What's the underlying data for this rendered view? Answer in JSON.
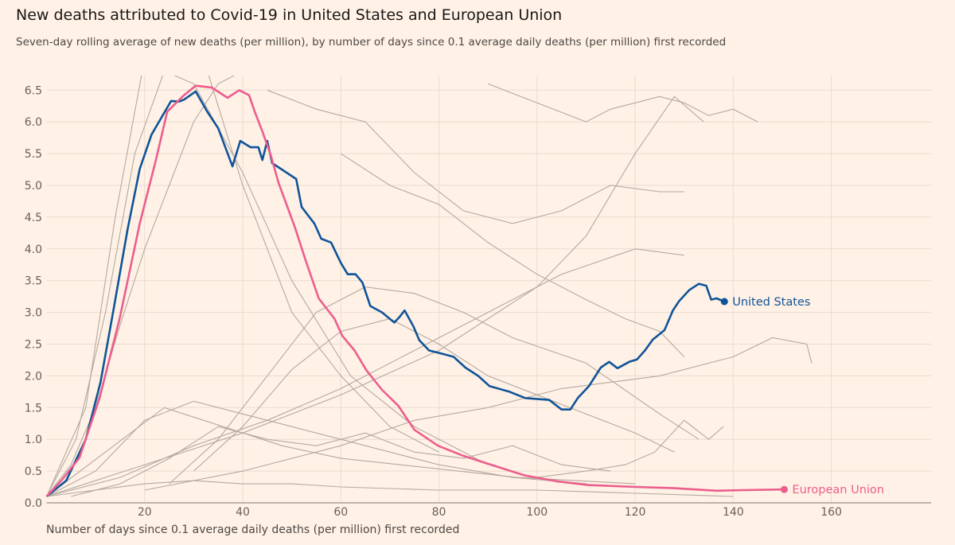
{
  "chart_data": {
    "type": "line",
    "title": "New deaths attributed to Covid-19 in United States and European Union",
    "subtitle": "Seven-day rolling average of new deaths (per million), by number of days since 0.1 average daily deaths (per million) first recorded",
    "xlabel": "Number of days since 0.1 average daily deaths (per million) first recorded",
    "ylabel": "",
    "xlim": [
      0,
      180
    ],
    "ylim": [
      0,
      6.5
    ],
    "x_ticks": [
      20,
      40,
      60,
      80,
      100,
      120,
      140,
      160
    ],
    "y_ticks": [
      "0.0",
      "0.5",
      "1.0",
      "1.5",
      "2.0",
      "2.5",
      "3.0",
      "3.5",
      "4.0",
      "4.5",
      "5.0",
      "5.5",
      "6.0",
      "6.5"
    ],
    "grid": true,
    "colors": {
      "background": "#fff1e5",
      "united_states": "#0f5499",
      "european_union": "#eb5e8d",
      "other": "#b3a9a1",
      "grid": "#e9dccf"
    },
    "series": [
      {
        "name": "United States",
        "highlight": true,
        "x": [
          0,
          4,
          8,
          11,
          13.7,
          16.5,
          19,
          21.4,
          25.4,
          27,
          28,
          30.4,
          32.7,
          35,
          37.9,
          39.5,
          41.6,
          43.2,
          44,
          45,
          46,
          48,
          50.9,
          52,
          54.6,
          56,
          58,
          60,
          61.4,
          63,
          64.4,
          66,
          68.4,
          70.9,
          72,
          73,
          74.8,
          76,
          78,
          80.6,
          83,
          85.4,
          88,
          90.3,
          94.4,
          97.6,
          102.5,
          105,
          106.8,
          108.3,
          110.6,
          113,
          114.7,
          116.4,
          118.8,
          120.4,
          122,
          123.6,
          126,
          127.7,
          129,
          131,
          133,
          134.5,
          135.5,
          136.6,
          138.2
        ],
        "y": [
          0.1,
          0.35,
          1.0,
          1.9,
          3.06,
          4.3,
          5.26,
          5.8,
          6.33,
          6.32,
          6.35,
          6.48,
          6.17,
          5.9,
          5.3,
          5.7,
          5.6,
          5.6,
          5.4,
          5.7,
          5.35,
          5.25,
          5.1,
          4.66,
          4.4,
          4.16,
          4.1,
          3.78,
          3.6,
          3.6,
          3.47,
          3.1,
          3.0,
          2.84,
          2.93,
          3.03,
          2.78,
          2.56,
          2.4,
          2.35,
          2.3,
          2.13,
          2.0,
          1.84,
          1.75,
          1.65,
          1.62,
          1.47,
          1.47,
          1.65,
          1.84,
          2.13,
          2.22,
          2.12,
          2.22,
          2.26,
          2.4,
          2.57,
          2.72,
          3.03,
          3.18,
          3.35,
          3.45,
          3.42,
          3.2,
          3.22,
          3.17
        ]
      },
      {
        "name": "European Union",
        "highlight": true,
        "x": [
          0,
          3,
          6.7,
          10.8,
          14.9,
          19,
          22.3,
          24.6,
          28,
          30.4,
          33.7,
          36.9,
          39.3,
          41.3,
          42.4,
          44,
          45.7,
          47.3,
          50.6,
          53,
          55.5,
          58.7,
          60.3,
          62.8,
          65.2,
          68.4,
          71.7,
          75,
          79.8,
          84.6,
          91,
          97.6,
          104,
          110.6,
          120,
          128,
          136.6,
          142,
          150.4
        ],
        "y": [
          0.1,
          0.35,
          0.71,
          1.65,
          2.9,
          4.4,
          5.4,
          6.16,
          6.42,
          6.57,
          6.54,
          6.38,
          6.5,
          6.42,
          6.17,
          5.85,
          5.48,
          5.04,
          4.35,
          3.78,
          3.22,
          2.9,
          2.63,
          2.4,
          2.09,
          1.78,
          1.53,
          1.15,
          0.9,
          0.75,
          0.59,
          0.43,
          0.34,
          0.28,
          0.25,
          0.23,
          0.19,
          0.2,
          0.21
        ]
      }
    ],
    "other_series": [
      {
        "x": [
          0,
          8,
          14,
          20,
          26,
          32,
          40,
          50,
          60,
          70,
          80
        ],
        "y": [
          0.1,
          1.5,
          4.5,
          7,
          7.5,
          7,
          5,
          3,
          2,
          1.2,
          0.8
        ]
      },
      {
        "x": [
          0,
          6,
          12,
          18,
          24,
          30,
          40,
          50,
          62,
          75,
          90
        ],
        "y": [
          0.1,
          1,
          3,
          5.5,
          6.8,
          6.6,
          5.2,
          3.5,
          2,
          1.2,
          0.6
        ]
      },
      {
        "x": [
          0,
          10,
          20,
          30,
          40,
          50,
          60,
          70,
          80,
          95,
          110
        ],
        "y": [
          0.1,
          0.5,
          1.3,
          1.6,
          1.4,
          1.2,
          1.0,
          0.8,
          0.6,
          0.4,
          0.3
        ]
      },
      {
        "x": [
          0,
          15,
          30,
          45,
          60,
          75,
          90,
          105,
          120,
          130
        ],
        "y": [
          0.1,
          0.4,
          0.9,
          1.3,
          1.8,
          2.4,
          3.0,
          3.6,
          4.0,
          3.9
        ]
      },
      {
        "x": [
          0,
          20,
          40,
          60,
          80,
          100,
          110,
          120,
          128,
          134
        ],
        "y": [
          0.1,
          0.6,
          1.1,
          1.7,
          2.4,
          3.4,
          4.2,
          5.5,
          6.4,
          6.0
        ]
      },
      {
        "x": [
          20,
          40,
          60,
          75,
          90,
          105,
          115,
          125,
          135,
          140,
          148,
          155,
          156
        ],
        "y": [
          0.2,
          0.5,
          0.9,
          1.3,
          1.5,
          1.8,
          1.9,
          2.0,
          2.2,
          2.3,
          2.6,
          2.5,
          2.2
        ]
      },
      {
        "x": [
          45,
          55,
          65,
          75,
          85,
          95,
          105,
          115,
          125,
          130
        ],
        "y": [
          6.5,
          6.2,
          6.0,
          5.2,
          4.6,
          4.4,
          4.6,
          5.0,
          4.9,
          4.9
        ]
      },
      {
        "x": [
          60,
          70,
          80,
          90,
          100,
          110,
          118,
          125,
          130
        ],
        "y": [
          5.5,
          5.0,
          4.7,
          4.1,
          3.6,
          3.2,
          2.9,
          2.7,
          2.3
        ]
      },
      {
        "x": [
          25,
          35,
          45,
          55,
          65,
          75,
          85,
          95,
          110,
          125,
          133
        ],
        "y": [
          0.3,
          1.0,
          2.0,
          3.0,
          3.4,
          3.3,
          3.0,
          2.6,
          2.2,
          1.4,
          1.0
        ]
      },
      {
        "x": [
          0,
          10,
          20,
          30,
          40,
          50,
          60,
          80,
          100,
          120,
          140
        ],
        "y": [
          0.1,
          0.2,
          0.3,
          0.35,
          0.3,
          0.3,
          0.25,
          0.2,
          0.2,
          0.15,
          0.1
        ]
      },
      {
        "x": [
          0,
          12,
          24,
          36,
          48,
          60,
          72,
          84,
          96,
          108,
          120
        ],
        "y": [
          0.1,
          0.8,
          1.5,
          1.2,
          0.9,
          0.7,
          0.6,
          0.5,
          0.4,
          0.35,
          0.3
        ]
      },
      {
        "x": [
          5,
          15,
          25,
          35,
          45,
          55,
          65,
          75,
          85,
          95,
          105,
          115
        ],
        "y": [
          0.1,
          0.3,
          0.7,
          1.2,
          1.0,
          0.9,
          1.1,
          0.8,
          0.7,
          0.9,
          0.6,
          0.5
        ]
      },
      {
        "x": [
          90,
          100,
          110,
          115,
          120,
          125,
          130,
          135,
          140,
          145
        ],
        "y": [
          6.6,
          6.3,
          6.0,
          6.2,
          6.3,
          6.4,
          6.3,
          6.1,
          6.2,
          6.0
        ]
      },
      {
        "x": [
          100,
          110,
          118,
          124,
          130,
          135,
          138
        ],
        "y": [
          0.4,
          0.5,
          0.6,
          0.8,
          1.3,
          1.0,
          1.2
        ]
      },
      {
        "x": [
          0,
          5,
          10,
          15,
          20,
          25,
          30,
          35,
          45
        ],
        "y": [
          0.1,
          0.6,
          1.5,
          2.8,
          4.0,
          5.0,
          6.0,
          6.6,
          7.0
        ]
      },
      {
        "x": [
          30,
          40,
          50,
          60,
          70,
          80,
          90,
          100,
          110,
          120,
          128
        ],
        "y": [
          0.5,
          1.2,
          2.1,
          2.7,
          2.9,
          2.5,
          2.0,
          1.7,
          1.4,
          1.1,
          0.8
        ]
      }
    ]
  },
  "labels": {
    "united_states": "United States",
    "european_union": "European Union"
  }
}
